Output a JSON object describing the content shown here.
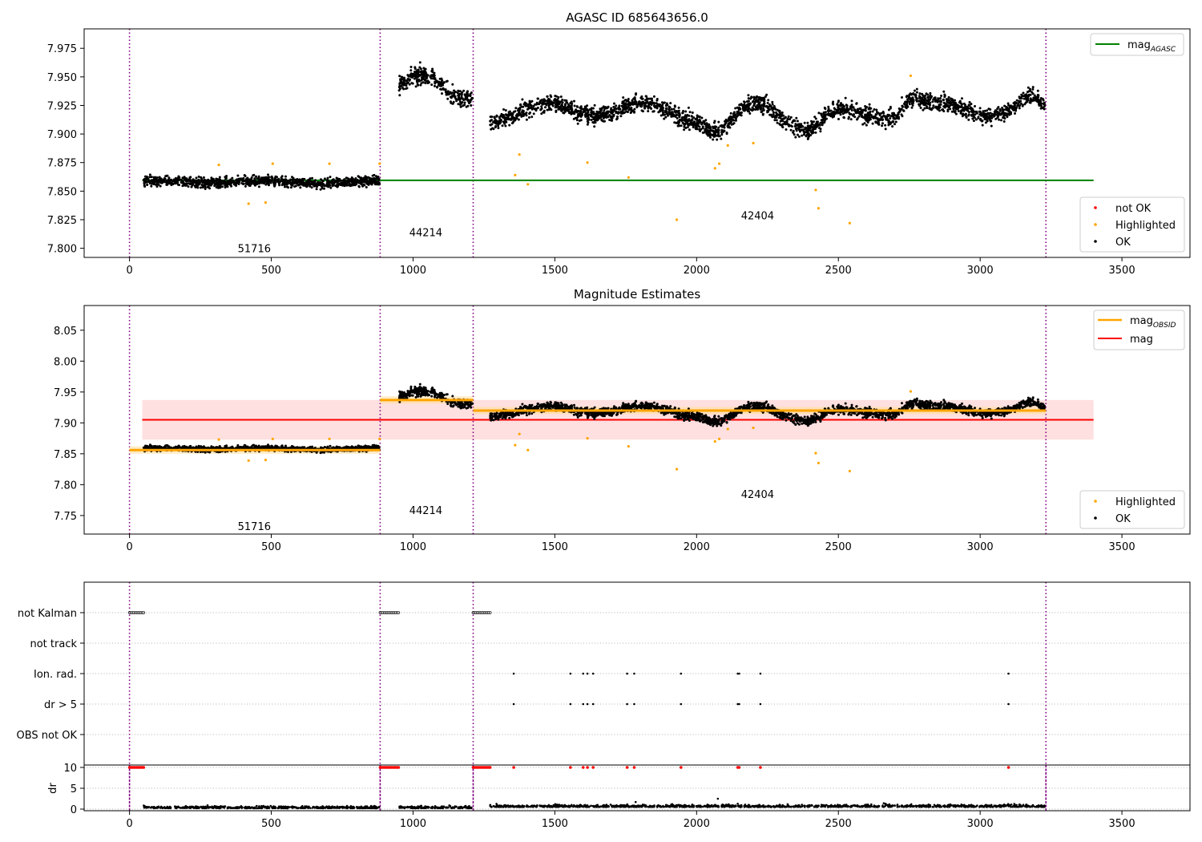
{
  "chart_data": [
    {
      "type": "scatter",
      "title": "AGASC ID 685643656.0",
      "xlim": [
        -160,
        3740
      ],
      "ylim": [
        7.792,
        7.992
      ],
      "xticks": [
        0,
        500,
        1000,
        1500,
        2000,
        2500,
        3000,
        3500
      ],
      "yticks": [
        7.8,
        7.825,
        7.85,
        7.875,
        7.9,
        7.925,
        7.95,
        7.975
      ],
      "ytick_labels": [
        "7.800",
        "7.825",
        "7.850",
        "7.875",
        "7.900",
        "7.925",
        "7.950",
        "7.975"
      ],
      "hlines": [
        {
          "name": "mag_AGASC",
          "y": 7.8595,
          "x0": 45,
          "x1": 3400,
          "color": "#008000"
        }
      ],
      "segment_boundaries": [
        0,
        884,
        1212,
        3232
      ],
      "segments": [
        {
          "obsid": "51716",
          "x0": 50,
          "x1": 882,
          "label_x": 440,
          "label_y": 7.8,
          "ok_level": 7.858,
          "ok_spread": 0.006
        },
        {
          "obsid": "44214",
          "x0": 950,
          "x1": 1210,
          "label_x": 1045,
          "label_y": 7.814,
          "ok_level": 7.938,
          "ok_spread": 0.01
        },
        {
          "obsid": "42404",
          "x0": 1272,
          "x1": 3228,
          "label_x": 2215,
          "label_y": 7.829,
          "ok_level": 7.918,
          "ok_spread": 0.01
        }
      ],
      "highlighted": [
        {
          "x": 315,
          "y": 7.873
        },
        {
          "x": 420,
          "y": 7.839
        },
        {
          "x": 480,
          "y": 7.84
        },
        {
          "x": 505,
          "y": 7.874
        },
        {
          "x": 705,
          "y": 7.874
        },
        {
          "x": 882,
          "y": 7.874
        },
        {
          "x": 1360,
          "y": 7.864
        },
        {
          "x": 1375,
          "y": 7.882
        },
        {
          "x": 1405,
          "y": 7.856
        },
        {
          "x": 1615,
          "y": 7.875
        },
        {
          "x": 1760,
          "y": 7.862
        },
        {
          "x": 1930,
          "y": 7.825
        },
        {
          "x": 2065,
          "y": 7.87
        },
        {
          "x": 2080,
          "y": 7.874
        },
        {
          "x": 2110,
          "y": 7.89
        },
        {
          "x": 2200,
          "y": 7.892
        },
        {
          "x": 2420,
          "y": 7.851
        },
        {
          "x": 2430,
          "y": 7.835
        },
        {
          "x": 2540,
          "y": 7.822
        },
        {
          "x": 2755,
          "y": 7.951
        }
      ],
      "legend_lines": [
        {
          "label": "mag",
          "subscript": "AGASC",
          "color": "#008000"
        }
      ],
      "legend_points": [
        {
          "label": "not OK",
          "color": "#ff0000"
        },
        {
          "label": "Highlighted",
          "color": "#ffa500"
        },
        {
          "label": "OK",
          "color": "#000000"
        }
      ]
    },
    {
      "type": "scatter",
      "title": "Magnitude Estimates",
      "xlim": [
        -160,
        3740
      ],
      "ylim": [
        7.72,
        8.09
      ],
      "xticks": [
        0,
        500,
        1000,
        1500,
        2000,
        2500,
        3000,
        3500
      ],
      "yticks": [
        7.75,
        7.8,
        7.85,
        7.9,
        7.95,
        8.0,
        8.05
      ],
      "ytick_labels": [
        "7.75",
        "7.80",
        "7.85",
        "7.90",
        "7.95",
        "8.00",
        "8.05"
      ],
      "band": {
        "y0": 7.873,
        "y1": 7.937,
        "x0": 45,
        "x1": 3400,
        "color": "#ffcccc"
      },
      "hlines": [
        {
          "name": "mag",
          "y": 7.905,
          "x0": 45,
          "x1": 3400,
          "color": "#ff0000"
        }
      ],
      "obsid_mags": [
        {
          "x0": 0,
          "x1": 884,
          "y": 7.856
        },
        {
          "x0": 884,
          "x1": 1212,
          "y": 7.937
        },
        {
          "x0": 1212,
          "x1": 3232,
          "y": 7.92
        }
      ],
      "segment_labels": [
        {
          "obsid": "51716",
          "x": 440,
          "y": 7.733
        },
        {
          "obsid": "44214",
          "x": 1045,
          "y": 7.759
        },
        {
          "obsid": "42404",
          "x": 2215,
          "y": 7.785
        }
      ],
      "legend_lines": [
        {
          "label": "mag",
          "subscript": "OBSID",
          "color": "#ffa500"
        },
        {
          "label": "mag",
          "subscript": "",
          "color": "#ff0000"
        }
      ],
      "legend_points": [
        {
          "label": "Highlighted",
          "color": "#ffa500"
        },
        {
          "label": "OK",
          "color": "#000000"
        }
      ]
    },
    {
      "type": "scatter",
      "xlim": [
        -160,
        3740
      ],
      "categories": [
        "not Kalman",
        "not track",
        "Ion. rad.",
        "dr > 5",
        "OBS not OK"
      ],
      "flag_runs": [
        {
          "flag": "not Kalman",
          "x0": 0,
          "x1": 50
        },
        {
          "flag": "not Kalman",
          "x0": 884,
          "x1": 950
        },
        {
          "flag": "not Kalman",
          "x0": 1212,
          "x1": 1272
        }
      ],
      "flag_points_x": [
        1355,
        1555,
        1600,
        1615,
        1635,
        1755,
        1780,
        1945,
        2145,
        2150,
        2225,
        3100
      ],
      "flag_point_rows": [
        "Ion. rad.",
        "dr > 5"
      ]
    },
    {
      "type": "scatter",
      "ylabel": "dr",
      "xlim": [
        -160,
        3740
      ],
      "ylim": [
        -1,
        10.5
      ],
      "xticks": [
        0,
        500,
        1000,
        1500,
        2000,
        2500,
        3000,
        3500
      ],
      "yticks": [
        0,
        5,
        10
      ],
      "ytick_labels": [
        "0",
        "5",
        "10"
      ],
      "clipped_value": 10
    }
  ],
  "colors": {
    "ok": "#000000",
    "not_ok": "#ff0000",
    "highlighted": "#ffa500",
    "boundary": "#800080",
    "grid": "#b0b0b0"
  }
}
